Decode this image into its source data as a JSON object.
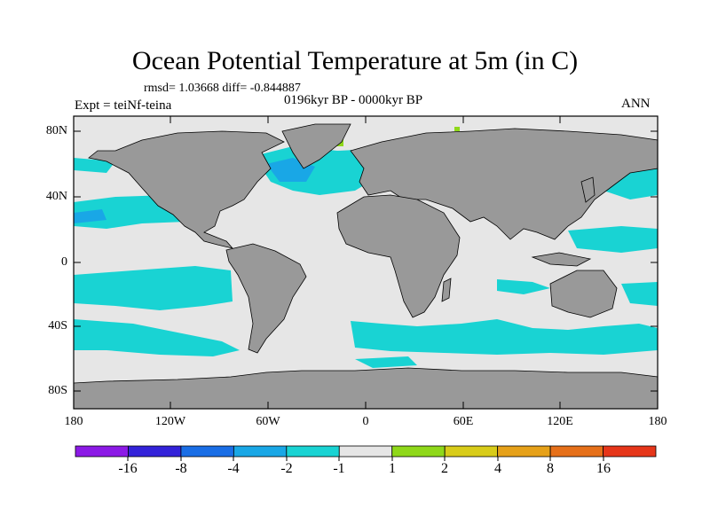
{
  "title": "Ocean Potential Temperature at 5m (in C)",
  "stats_text": "rmsd= 1.03668 diff= -0.844887",
  "period": "0196kyr BP - 0000kyr BP",
  "experiment": "Expt = teiNf-teina",
  "season": "ANN",
  "colors": {
    "land": "#999999",
    "neutral": "#e6e6e6",
    "anomaly_cyan": "#19d3d3",
    "anomaly_blue": "#19a7e6",
    "anomaly_warm": "#8fd81a",
    "coast": "#000000"
  },
  "lat_ticks": [
    "80N",
    "40N",
    "0",
    "40S",
    "80S"
  ],
  "lon_ticks": [
    "180",
    "120W",
    "60W",
    "0",
    "60E",
    "120E",
    "180"
  ],
  "colorbar": {
    "colors": [
      "#8c1ae6",
      "#3322d9",
      "#1a6ee6",
      "#19a7e6",
      "#19d3d3",
      "#e6e6e6",
      "#8fd81a",
      "#d8cc19",
      "#e6a119",
      "#e6701a",
      "#e6361a"
    ],
    "labels": [
      "-16",
      "-8",
      "-4",
      "-2",
      "-1",
      "1",
      "2",
      "4",
      "8",
      "16"
    ]
  }
}
